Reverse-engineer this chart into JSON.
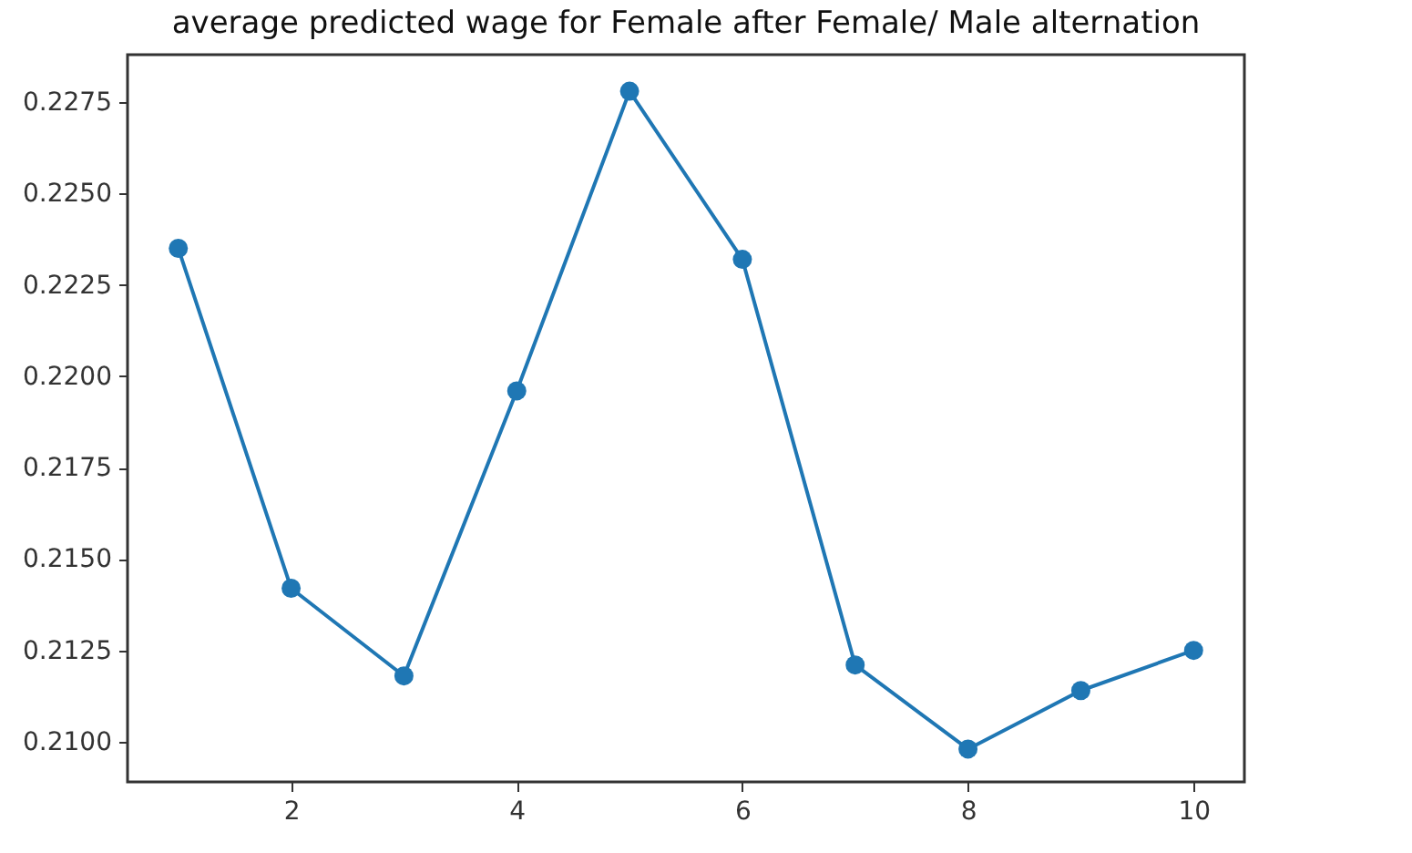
{
  "chart_data": {
    "type": "line",
    "title": "average predicted wage for  Female after  Female/ Male alternation",
    "x": [
      1,
      2,
      3,
      4,
      5,
      6,
      7,
      8,
      9,
      10
    ],
    "series": [
      {
        "color": "#1f77b4",
        "values": [
          0.2235,
          0.2142,
          0.2118,
          0.2196,
          0.2278,
          0.2232,
          0.2121,
          0.2098,
          0.2114,
          0.2125
        ]
      }
    ],
    "xlim": [
      0.55,
      10.45
    ],
    "xticks": [
      2,
      4,
      6,
      8,
      10
    ],
    "ylim": [
      0.2089,
      0.2288
    ],
    "yticks": [
      {
        "value": 0.21,
        "label": "0.2100"
      },
      {
        "value": 0.2125,
        "label": "0.2125"
      },
      {
        "value": 0.215,
        "label": "0.2150"
      },
      {
        "value": 0.2175,
        "label": "0.2175"
      },
      {
        "value": 0.22,
        "label": "0.2200"
      },
      {
        "value": 0.2225,
        "label": "0.2225"
      },
      {
        "value": 0.225,
        "label": "0.2250"
      },
      {
        "value": 0.2275,
        "label": "0.2275"
      }
    ],
    "marker": "circle",
    "line_style": "solid",
    "grid": false
  }
}
